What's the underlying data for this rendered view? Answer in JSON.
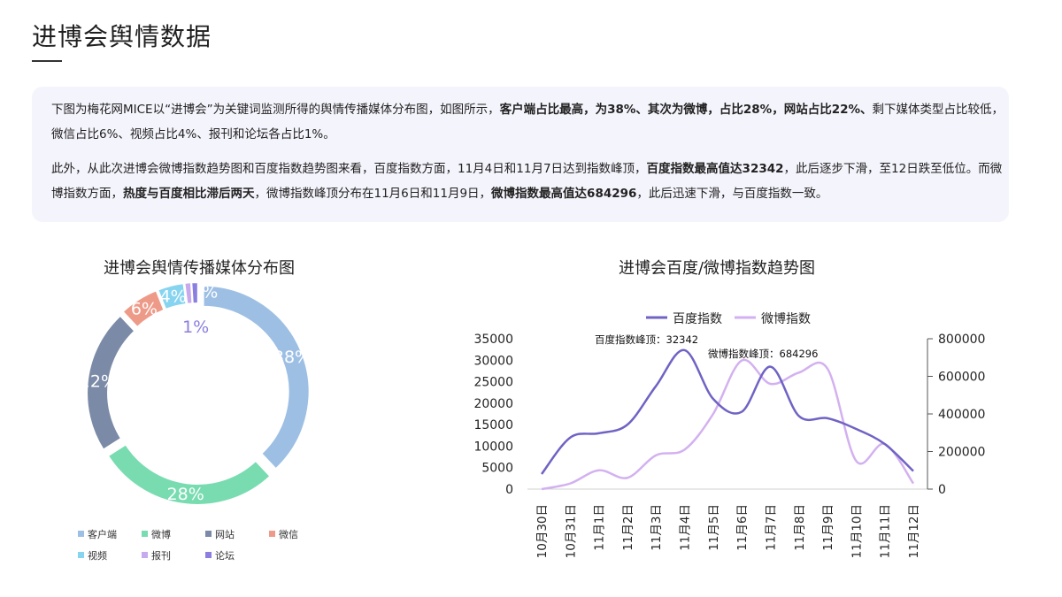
{
  "page": {
    "title": "进博会舆情数据"
  },
  "summary": {
    "p1": [
      {
        "text": "下图为梅花网MICE以“进博会”为关键词监测所得的舆情传播媒体分布图，如图所示，",
        "bold": false
      },
      {
        "text": "客户端占比最高，为38%、其次为微博，占比28%，网站占比22%、",
        "bold": true
      },
      {
        "text": "剩下媒体类型占比较低，微信占比6%、视频占比4%、报刊和论坛各占比1%。",
        "bold": false
      }
    ],
    "p2": [
      {
        "text": "此外，从此次进博会微博指数趋势图和百度指数趋势图来看，百度指数方面，11月4日和11月7日达到指数峰顶，",
        "bold": false
      },
      {
        "text": "百度指数最高值达32342",
        "bold": true
      },
      {
        "text": "，此后逐步下滑，至12日跌至低位。而微博指数方面，",
        "bold": false
      },
      {
        "text": "热度与百度相比滞后两天",
        "bold": true
      },
      {
        "text": "，微博指数峰顶分布在11月6日和11月9日，",
        "bold": false
      },
      {
        "text": "微博指数最高值达684296",
        "bold": true
      },
      {
        "text": "，此后迅速下滑，与百度指数一致。",
        "bold": false
      }
    ]
  },
  "chart_data": [
    {
      "type": "pie",
      "variant": "donut",
      "title": "进博会舆情传播媒体分布图",
      "legend_position": "bottom",
      "slices": [
        {
          "name": "客户端",
          "value": 38,
          "label": "38%",
          "color": "#9dbfe4"
        },
        {
          "name": "微博",
          "value": 28,
          "label": "28%",
          "color": "#78dcb0"
        },
        {
          "name": "网站",
          "value": 22,
          "label": "22%",
          "color": "#7b8aa6"
        },
        {
          "name": "微信",
          "value": 6,
          "label": "6%",
          "color": "#ee9a88"
        },
        {
          "name": "视频",
          "value": 4,
          "label": "4%",
          "color": "#87d4f0"
        },
        {
          "name": "报刊",
          "value": 1,
          "label": "1%",
          "color": "#c7a9ee"
        },
        {
          "name": "论坛",
          "value": 1,
          "label": "1%",
          "color": "#8a7fe0"
        }
      ]
    },
    {
      "type": "line",
      "title": "进博会百度/微博指数趋势图",
      "legend_position": "top",
      "categories": [
        "10月30日",
        "10月31日",
        "11月1日",
        "11月2日",
        "11月3日",
        "11月4日",
        "11月5日",
        "11月6日",
        "11月7日",
        "11月8日",
        "11月9日",
        "11月10日",
        "11月11日",
        "11月12日"
      ],
      "y_left": {
        "min": 0,
        "max": 35000,
        "ticks": [
          "0",
          "5000",
          "10000",
          "15000",
          "20000",
          "25000",
          "30000",
          "35000"
        ]
      },
      "y_right": {
        "min": 0,
        "max": 800000,
        "ticks": [
          "0",
          "200000",
          "400000",
          "600000",
          "800000"
        ]
      },
      "series": [
        {
          "name": "百度指数",
          "axis": "left",
          "color": "#6f63c4",
          "values": [
            3500,
            12000,
            13000,
            15000,
            24000,
            32342,
            21000,
            18000,
            28500,
            17000,
            16500,
            14000,
            10500,
            4200
          ]
        },
        {
          "name": "微博指数",
          "axis": "right",
          "color": "#d3b1f0",
          "values": [
            0,
            30000,
            100000,
            60000,
            180000,
            210000,
            400000,
            684296,
            560000,
            620000,
            640000,
            150000,
            240000,
            30000
          ]
        }
      ],
      "annotations": [
        {
          "text": "百度指数峰顶：32342"
        },
        {
          "text": "微博指数峰顶：684296"
        }
      ]
    }
  ]
}
